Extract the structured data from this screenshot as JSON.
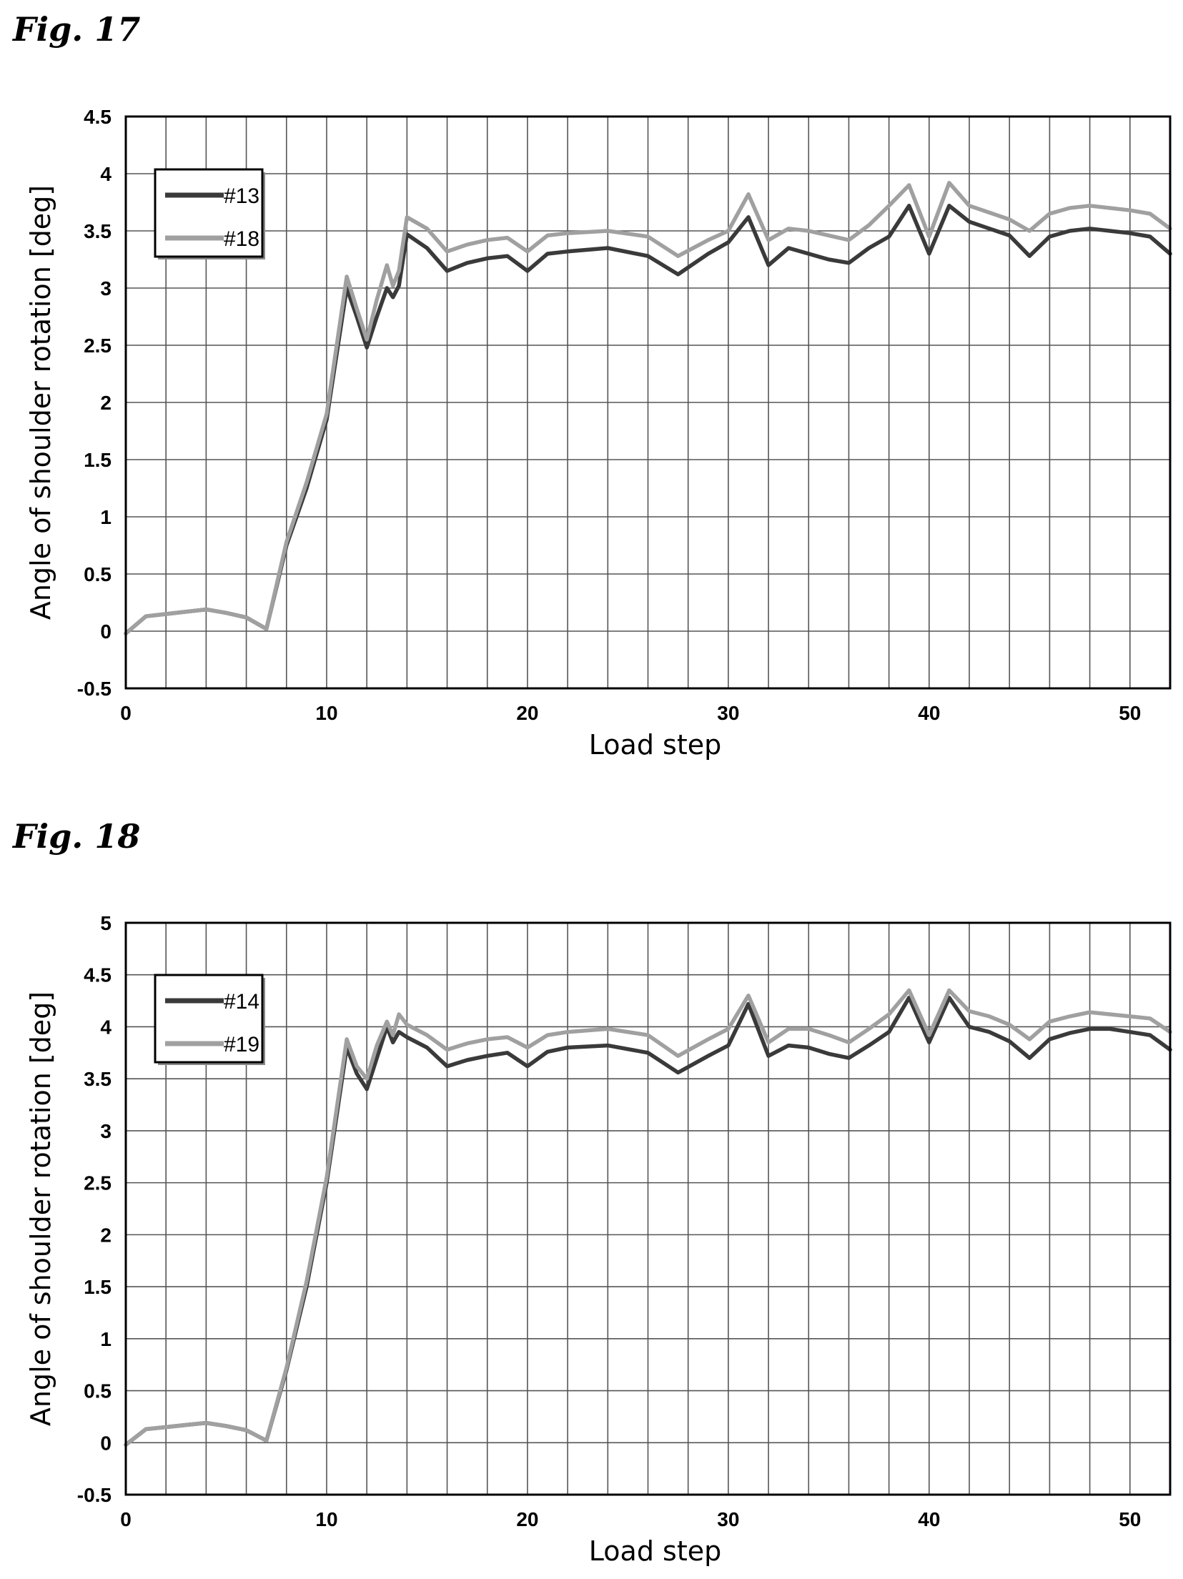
{
  "figures": [
    {
      "label": "Fig. 17",
      "chart_data": {
        "type": "line",
        "xlabel": "Load step",
        "ylabel": "Angle of shoulder rotation [deg]",
        "xlim": [
          0,
          52
        ],
        "ylim": [
          -0.5,
          4.5
        ],
        "xticks": [
          0,
          10,
          20,
          30,
          40,
          50
        ],
        "yticks": [
          -0.5,
          0,
          0.5,
          1,
          1.5,
          2,
          2.5,
          3,
          3.5,
          4,
          4.5
        ],
        "ytick_labels": [
          "-0.5",
          "0",
          "0.5",
          "1",
          "1.5",
          "2",
          "2.5",
          "3",
          "3.5",
          "4",
          "4.5"
        ],
        "grid": true,
        "legend_position": "top-left",
        "series": [
          {
            "name": "#13",
            "color": "#3a3a3a",
            "x": [
              0,
              1,
              2,
              3,
              4,
              5,
              6,
              7,
              8,
              9,
              10,
              11,
              11.5,
              12,
              12.5,
              13,
              13.3,
              13.6,
              14,
              15,
              16,
              17,
              18,
              19,
              20,
              21,
              22,
              24,
              26,
              27.5,
              29,
              30,
              31,
              32,
              33,
              34,
              35,
              36,
              37,
              38,
              39,
              40,
              41,
              42,
              43,
              44,
              45,
              46,
              47,
              48,
              49,
              50,
              51,
              52
            ],
            "y": [
              -0.02,
              0.13,
              0.15,
              0.17,
              0.19,
              0.16,
              0.12,
              0.02,
              0.75,
              1.25,
              1.85,
              3.0,
              2.75,
              2.48,
              2.75,
              3.0,
              2.92,
              3.02,
              3.47,
              3.35,
              3.15,
              3.22,
              3.26,
              3.28,
              3.15,
              3.3,
              3.32,
              3.35,
              3.28,
              3.12,
              3.3,
              3.4,
              3.62,
              3.2,
              3.35,
              3.3,
              3.25,
              3.22,
              3.35,
              3.45,
              3.72,
              3.3,
              3.72,
              3.58,
              3.52,
              3.46,
              3.28,
              3.45,
              3.5,
              3.52,
              3.5,
              3.48,
              3.45,
              3.3
            ]
          },
          {
            "name": "#18",
            "color": "#a0a0a0",
            "x": [
              0,
              1,
              2,
              3,
              4,
              5,
              6,
              7,
              8,
              9,
              10,
              11,
              11.5,
              12,
              12.5,
              13,
              13.3,
              13.6,
              14,
              15,
              16,
              17,
              18,
              19,
              20,
              21,
              22,
              24,
              26,
              27.5,
              29,
              30,
              31,
              32,
              33,
              34,
              35,
              36,
              37,
              38,
              39,
              40,
              41,
              42,
              43,
              44,
              45,
              46,
              47,
              48,
              49,
              50,
              51,
              52
            ],
            "y": [
              -0.02,
              0.13,
              0.15,
              0.17,
              0.19,
              0.16,
              0.12,
              0.02,
              0.78,
              1.3,
              1.9,
              3.1,
              2.82,
              2.55,
              2.9,
              3.2,
              3.02,
              3.15,
              3.62,
              3.52,
              3.32,
              3.38,
              3.42,
              3.44,
              3.32,
              3.46,
              3.48,
              3.5,
              3.45,
              3.28,
              3.42,
              3.5,
              3.82,
              3.42,
              3.52,
              3.5,
              3.46,
              3.42,
              3.55,
              3.72,
              3.9,
              3.45,
              3.92,
              3.72,
              3.66,
              3.6,
              3.5,
              3.65,
              3.7,
              3.72,
              3.7,
              3.68,
              3.65,
              3.52
            ]
          }
        ]
      }
    },
    {
      "label": "Fig. 18",
      "chart_data": {
        "type": "line",
        "xlabel": "Load step",
        "ylabel": "Angle of shoulder rotation [deg]",
        "xlim": [
          0,
          52
        ],
        "ylim": [
          -0.5,
          5
        ],
        "xticks": [
          0,
          10,
          20,
          30,
          40,
          50
        ],
        "yticks": [
          -0.5,
          0,
          0.5,
          1,
          1.5,
          2,
          2.5,
          3,
          3.5,
          4,
          4.5,
          5
        ],
        "ytick_labels": [
          "-0.5",
          "0",
          "0.5",
          "1",
          "1.5",
          "2",
          "2.5",
          "3",
          "3.5",
          "4",
          "4.5",
          "5"
        ],
        "grid": true,
        "legend_position": "top-left",
        "series": [
          {
            "name": "#14",
            "color": "#3a3a3a",
            "x": [
              0,
              1,
              2,
              3,
              4,
              5,
              6,
              7,
              8,
              9,
              10,
              11,
              11.5,
              12,
              12.5,
              13,
              13.3,
              13.6,
              14,
              15,
              16,
              17,
              18,
              19,
              20,
              21,
              22,
              24,
              26,
              27.5,
              29,
              30,
              31,
              32,
              33,
              34,
              35,
              36,
              37,
              38,
              39,
              40,
              41,
              42,
              43,
              44,
              45,
              46,
              47,
              48,
              49,
              50,
              51,
              52
            ],
            "y": [
              -0.02,
              0.13,
              0.15,
              0.17,
              0.19,
              0.16,
              0.12,
              0.02,
              0.7,
              1.5,
              2.5,
              3.8,
              3.55,
              3.4,
              3.7,
              4.0,
              3.85,
              3.95,
              3.9,
              3.8,
              3.62,
              3.68,
              3.72,
              3.75,
              3.62,
              3.76,
              3.8,
              3.82,
              3.75,
              3.56,
              3.72,
              3.82,
              4.22,
              3.72,
              3.82,
              3.8,
              3.74,
              3.7,
              3.82,
              3.95,
              4.28,
              3.85,
              4.28,
              4.0,
              3.95,
              3.86,
              3.7,
              3.88,
              3.94,
              3.98,
              3.98,
              3.95,
              3.92,
              3.78
            ]
          },
          {
            "name": "#19",
            "color": "#a0a0a0",
            "x": [
              0,
              1,
              2,
              3,
              4,
              5,
              6,
              7,
              8,
              9,
              10,
              11,
              11.5,
              12,
              12.5,
              13,
              13.3,
              13.6,
              14,
              15,
              16,
              17,
              18,
              19,
              20,
              21,
              22,
              24,
              26,
              27.5,
              29,
              30,
              31,
              32,
              33,
              34,
              35,
              36,
              37,
              38,
              39,
              40,
              41,
              42,
              43,
              44,
              45,
              46,
              47,
              48,
              49,
              50,
              51,
              52
            ],
            "y": [
              -0.02,
              0.13,
              0.15,
              0.17,
              0.19,
              0.16,
              0.12,
              0.02,
              0.72,
              1.55,
              2.55,
              3.88,
              3.62,
              3.5,
              3.82,
              4.05,
              3.92,
              4.12,
              4.02,
              3.92,
              3.78,
              3.84,
              3.88,
              3.9,
              3.8,
              3.92,
              3.95,
              3.98,
              3.92,
              3.72,
              3.88,
              3.98,
              4.3,
              3.85,
              3.98,
              3.98,
              3.92,
              3.85,
              3.98,
              4.12,
              4.35,
              3.92,
              4.35,
              4.15,
              4.1,
              4.02,
              3.88,
              4.05,
              4.1,
              4.14,
              4.12,
              4.1,
              4.08,
              3.95
            ]
          }
        ]
      }
    }
  ]
}
